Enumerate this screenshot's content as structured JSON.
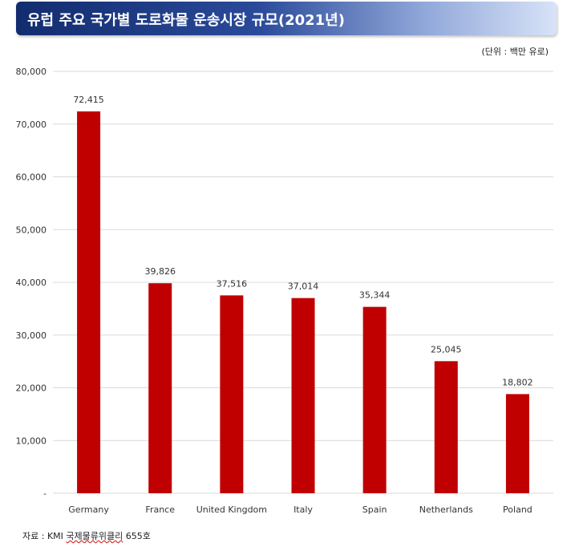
{
  "title": "유럽 주요 국가별 도로화물 운송시장 규모(2021년)",
  "unit": "(단위 : 백만 유로)",
  "source": {
    "prefix": "자료 : KMI ",
    "underlined": "국제물류위클리",
    "suffix": " 655호"
  },
  "colors": {
    "bar": "#c00000",
    "grid": "#d9d9d9",
    "title_bg": "#1f3a84"
  },
  "chart_data": {
    "type": "bar",
    "categories": [
      "Germany",
      "France",
      "United Kingdom",
      "Italy",
      "Spain",
      "Netherlands",
      "Poland"
    ],
    "values": [
      72415,
      39826,
      37516,
      37014,
      35344,
      25045,
      18802
    ],
    "value_labels": [
      "72,415",
      "39,826",
      "37,516",
      "37,014",
      "35,344",
      "25,045",
      "18,802"
    ],
    "y_ticks": [
      0,
      10000,
      20000,
      30000,
      40000,
      50000,
      60000,
      70000,
      80000
    ],
    "y_tick_labels": [
      "-",
      "10,000",
      "20,000",
      "30,000",
      "40,000",
      "50,000",
      "60,000",
      "70,000",
      "80,000"
    ],
    "ylim": [
      0,
      80000
    ],
    "grid": true
  }
}
